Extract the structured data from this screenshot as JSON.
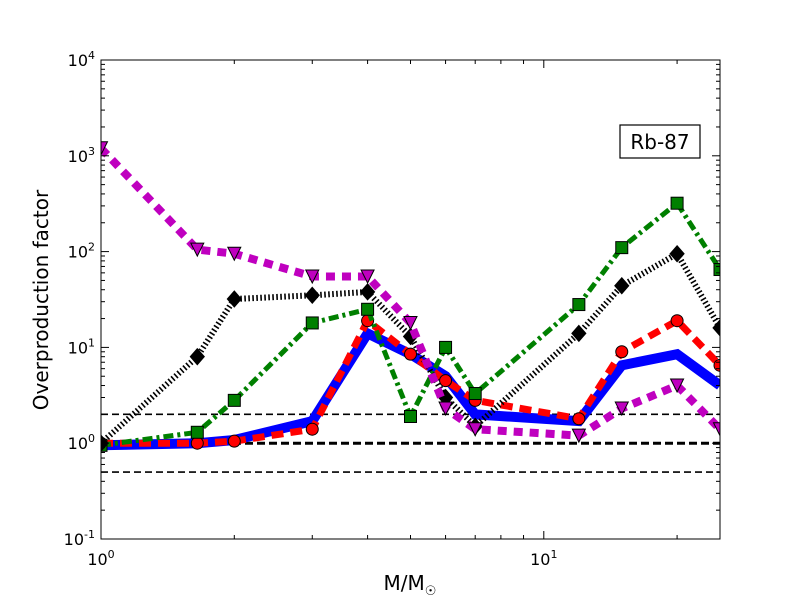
{
  "chart_data": {
    "type": "line",
    "annotation": "Rb-87",
    "xlabel": "M/M",
    "xlabel_symbol": "☉",
    "ylabel": "Overproduction factor",
    "xscale": "log",
    "yscale": "log",
    "xlim": [
      1,
      25
    ],
    "ylim": [
      0.1,
      10000
    ],
    "x_ticks": [
      {
        "value": 1,
        "base": "10",
        "exp": "0"
      },
      {
        "value": 10,
        "base": "10",
        "exp": "1"
      }
    ],
    "y_ticks": [
      {
        "value": 0.1,
        "base": "10",
        "exp": "-1"
      },
      {
        "value": 1,
        "base": "10",
        "exp": "0"
      },
      {
        "value": 10,
        "base": "10",
        "exp": "1"
      },
      {
        "value": 100,
        "base": "10",
        "exp": "2"
      },
      {
        "value": 1000,
        "base": "10",
        "exp": "3"
      },
      {
        "value": 10000,
        "base": "10",
        "exp": "4"
      }
    ],
    "reference_lines": [
      {
        "y": 2.0,
        "style": "dashed-thin"
      },
      {
        "y": 1.0,
        "style": "dashed-thick"
      },
      {
        "y": 0.5,
        "style": "dashed-thin"
      }
    ],
    "series": [
      {
        "color": "#0000ff",
        "linestyle": "solid",
        "marker": "none",
        "x": [
          1.0,
          1.65,
          2.0,
          3.0,
          4.0,
          5.0,
          6.0,
          7.0,
          12.0,
          15.0,
          20.0,
          25.0
        ],
        "y": [
          0.95,
          1.0,
          1.08,
          1.7,
          14.0,
          8.5,
          5.0,
          2.0,
          1.7,
          6.5,
          8.5,
          4.0
        ]
      },
      {
        "color": "#ff0000",
        "linestyle": "dashed",
        "marker": "circle",
        "x": [
          1.0,
          1.65,
          2.0,
          3.0,
          4.0,
          5.0,
          6.0,
          7.0,
          12.0,
          15.0,
          20.0,
          25.0
        ],
        "y": [
          1.0,
          1.0,
          1.05,
          1.4,
          19.0,
          8.5,
          4.5,
          2.8,
          1.8,
          9.0,
          19.0,
          6.5
        ]
      },
      {
        "color": "#008000",
        "linestyle": "dashdot",
        "marker": "square",
        "x": [
          1.0,
          1.65,
          2.0,
          3.0,
          4.0,
          5.0,
          6.0,
          7.0,
          12.0,
          15.0,
          20.0,
          25.0
        ],
        "y": [
          0.95,
          1.3,
          2.8,
          18.0,
          25.0,
          1.9,
          10.0,
          3.3,
          28.0,
          110.0,
          320.0,
          65.0
        ]
      },
      {
        "color": "#000000",
        "linestyle": "dotted",
        "marker": "diamond",
        "x": [
          1.0,
          1.65,
          2.0,
          3.0,
          4.0,
          5.0,
          6.0,
          7.0,
          12.0,
          15.0,
          20.0,
          25.0
        ],
        "y": [
          1.0,
          8.0,
          32.0,
          35.0,
          38.0,
          13.0,
          3.0,
          1.5,
          14.0,
          44.0,
          95.0,
          16.0
        ]
      },
      {
        "color": "#bf00bf",
        "linestyle": "dashed-dense",
        "marker": "triangle-down",
        "x": [
          1.0,
          1.65,
          2.0,
          3.0,
          4.0,
          5.0,
          6.0,
          7.0,
          12.0,
          15.0,
          20.0,
          25.0
        ],
        "y": [
          1200.0,
          105.0,
          95.0,
          55.0,
          55.0,
          18.0,
          2.3,
          1.4,
          1.2,
          2.3,
          4.0,
          1.4
        ]
      }
    ]
  }
}
